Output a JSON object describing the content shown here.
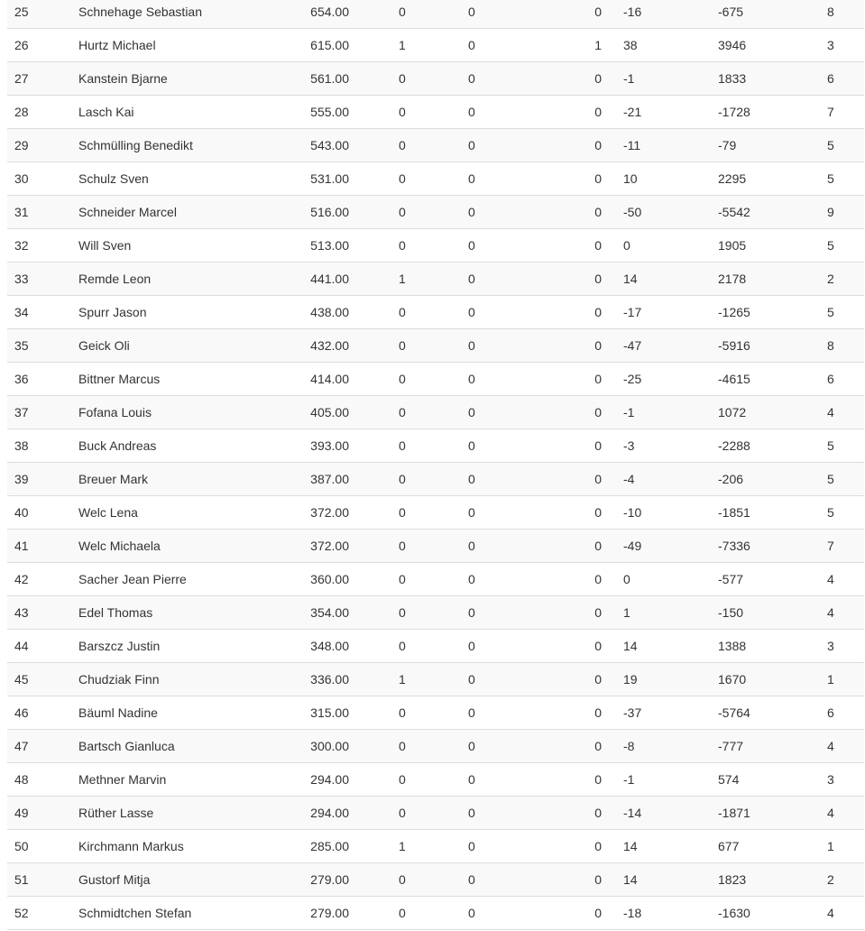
{
  "colors": {
    "stripe": "#f9f9f9",
    "border": "#dddddd",
    "text": "#333333"
  },
  "table": {
    "rows": [
      [
        "25",
        "Schnehage Sebastian",
        "654.00",
        "0",
        "0",
        "0",
        "-16",
        "-675",
        "8"
      ],
      [
        "26",
        "Hurtz Michael",
        "615.00",
        "1",
        "0",
        "1",
        "38",
        "3946",
        "3"
      ],
      [
        "27",
        "Kanstein Bjarne",
        "561.00",
        "0",
        "0",
        "0",
        "-1",
        "1833",
        "6"
      ],
      [
        "28",
        "Lasch Kai",
        "555.00",
        "0",
        "0",
        "0",
        "-21",
        "-1728",
        "7"
      ],
      [
        "29",
        "Schmülling Benedikt",
        "543.00",
        "0",
        "0",
        "0",
        "-11",
        "-79",
        "5"
      ],
      [
        "30",
        "Schulz Sven",
        "531.00",
        "0",
        "0",
        "0",
        "10",
        "2295",
        "5"
      ],
      [
        "31",
        "Schneider Marcel",
        "516.00",
        "0",
        "0",
        "0",
        "-50",
        "-5542",
        "9"
      ],
      [
        "32",
        "Will Sven",
        "513.00",
        "0",
        "0",
        "0",
        "0",
        "1905",
        "5"
      ],
      [
        "33",
        "Remde Leon",
        "441.00",
        "1",
        "0",
        "0",
        "14",
        "2178",
        "2"
      ],
      [
        "34",
        "Spurr Jason",
        "438.00",
        "0",
        "0",
        "0",
        "-17",
        "-1265",
        "5"
      ],
      [
        "35",
        "Geick Oli",
        "432.00",
        "0",
        "0",
        "0",
        "-47",
        "-5916",
        "8"
      ],
      [
        "36",
        "Bittner Marcus",
        "414.00",
        "0",
        "0",
        "0",
        "-25",
        "-4615",
        "6"
      ],
      [
        "37",
        "Fofana Louis",
        "405.00",
        "0",
        "0",
        "0",
        "-1",
        "1072",
        "4"
      ],
      [
        "38",
        "Buck Andreas",
        "393.00",
        "0",
        "0",
        "0",
        "-3",
        "-2288",
        "5"
      ],
      [
        "39",
        "Breuer Mark",
        "387.00",
        "0",
        "0",
        "0",
        "-4",
        "-206",
        "5"
      ],
      [
        "40",
        "Welc Lena",
        "372.00",
        "0",
        "0",
        "0",
        "-10",
        "-1851",
        "5"
      ],
      [
        "41",
        "Welc Michaela",
        "372.00",
        "0",
        "0",
        "0",
        "-49",
        "-7336",
        "7"
      ],
      [
        "42",
        "Sacher Jean Pierre",
        "360.00",
        "0",
        "0",
        "0",
        "0",
        "-577",
        "4"
      ],
      [
        "43",
        "Edel Thomas",
        "354.00",
        "0",
        "0",
        "0",
        "1",
        "-150",
        "4"
      ],
      [
        "44",
        "Barszcz Justin",
        "348.00",
        "0",
        "0",
        "0",
        "14",
        "1388",
        "3"
      ],
      [
        "45",
        "Chudziak Finn",
        "336.00",
        "1",
        "0",
        "0",
        "19",
        "1670",
        "1"
      ],
      [
        "46",
        "Bäuml Nadine",
        "315.00",
        "0",
        "0",
        "0",
        "-37",
        "-5764",
        "6"
      ],
      [
        "47",
        "Bartsch Gianluca",
        "300.00",
        "0",
        "0",
        "0",
        "-8",
        "-777",
        "4"
      ],
      [
        "48",
        "Methner Marvin",
        "294.00",
        "0",
        "0",
        "0",
        "-1",
        "574",
        "3"
      ],
      [
        "49",
        "Rüther Lasse",
        "294.00",
        "0",
        "0",
        "0",
        "-14",
        "-1871",
        "4"
      ],
      [
        "50",
        "Kirchmann Markus",
        "285.00",
        "1",
        "0",
        "0",
        "14",
        "677",
        "1"
      ],
      [
        "51",
        "Gustorf Mitja",
        "279.00",
        "0",
        "0",
        "0",
        "14",
        "1823",
        "2"
      ],
      [
        "52",
        "Schmidtchen Stefan",
        "279.00",
        "0",
        "0",
        "0",
        "-18",
        "-1630",
        "4"
      ]
    ]
  }
}
